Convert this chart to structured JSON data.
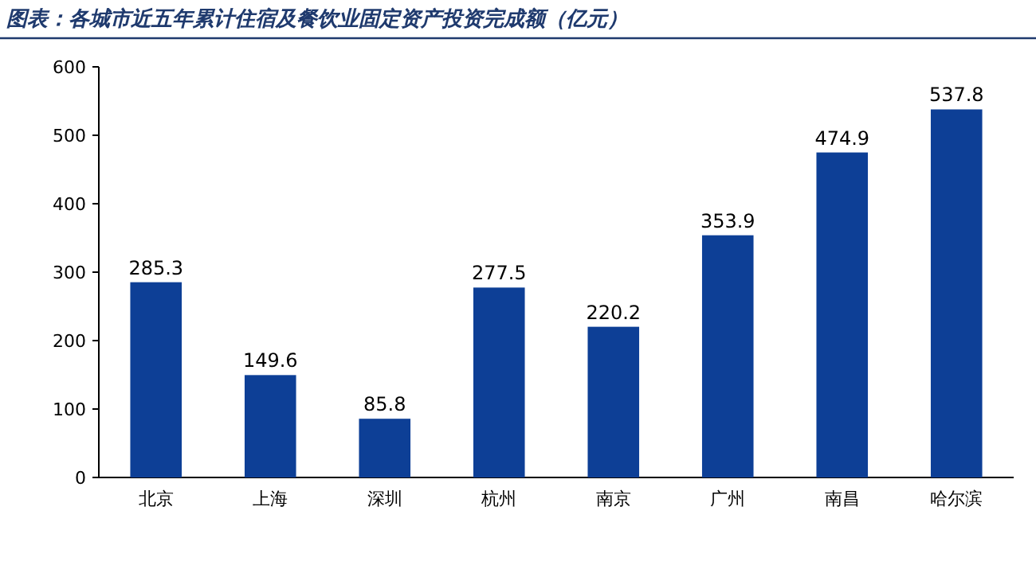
{
  "chart_data": {
    "type": "bar",
    "title": "图表：各城市近五年累计住宿及餐饮业固定资产投资完成额（亿元）",
    "categories": [
      "北京",
      "上海",
      "深圳",
      "杭州",
      "南京",
      "广州",
      "南昌",
      "哈尔滨"
    ],
    "values": [
      285.3,
      149.6,
      85.8,
      277.5,
      220.2,
      353.9,
      474.9,
      537.8
    ],
    "color": "#0d3f96",
    "data_labels": true,
    "ylim": [
      0,
      600
    ],
    "yticks": [
      0,
      100,
      200,
      300,
      400,
      500,
      600
    ],
    "grid": false
  }
}
